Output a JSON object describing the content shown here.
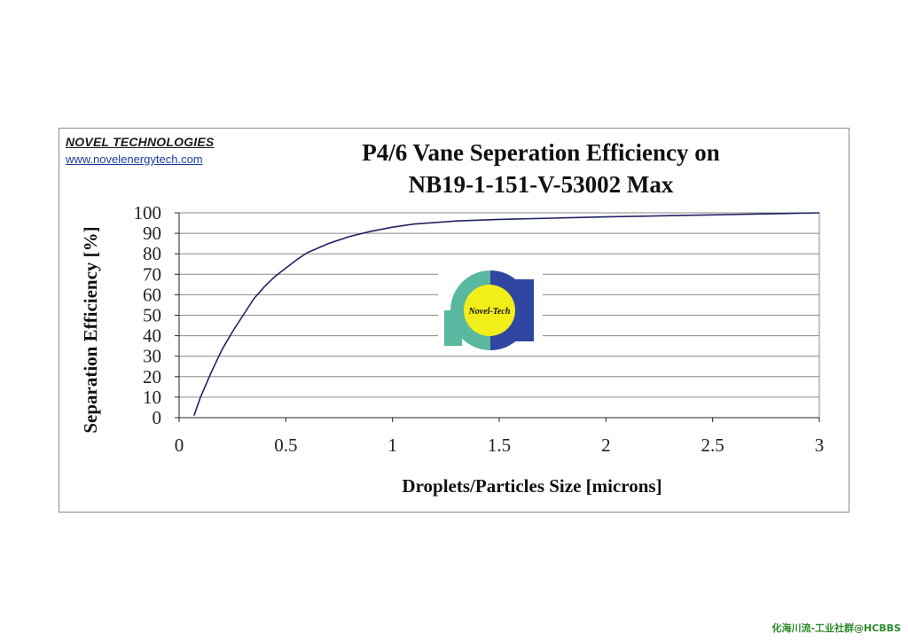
{
  "brand": {
    "name": "NOVEL TECHNOLOGIES",
    "url": "www.novelenergytech.com",
    "logo_text": "Novel-Tech"
  },
  "watermark": "化海川流-工业社群@HCBBS",
  "colors": {
    "line": "#1f2266",
    "grid": "#8a8a8a",
    "logo_teal": "#5ab8a0",
    "logo_blue": "#2f47a0",
    "logo_yellow": "#f2ee1a"
  },
  "chart_data": {
    "type": "line",
    "title_lines": [
      "P4/6 Vane Seperation Efficiency on",
      "NB19-1-151-V-53002 Max"
    ],
    "xlabel": "Droplets/Particles Size [microns]",
    "ylabel": "Separation Efficiency [%]",
    "xlim": [
      0,
      3
    ],
    "ylim": [
      0,
      100
    ],
    "xticks": [
      "0",
      "0.5",
      "1",
      "1.5",
      "2",
      "2.5",
      "3"
    ],
    "xtick_values": [
      0,
      0.5,
      1,
      1.5,
      2,
      2.5,
      3
    ],
    "yticks": [
      "0",
      "10",
      "20",
      "30",
      "40",
      "50",
      "60",
      "70",
      "80",
      "90",
      "100"
    ],
    "ytick_values": [
      0,
      10,
      20,
      30,
      40,
      50,
      60,
      70,
      80,
      90,
      100
    ],
    "grid": "horizontal",
    "series": [
      {
        "x": [
          0.07,
          0.1,
          0.15,
          0.2,
          0.25,
          0.3,
          0.35,
          0.4,
          0.45,
          0.5,
          0.55,
          0.6,
          0.7,
          0.8,
          0.9,
          1.0,
          1.1,
          1.2,
          1.3,
          1.5,
          1.75,
          2.0,
          2.5,
          3.0
        ],
        "y": [
          1,
          10,
          22,
          33,
          42,
          50,
          58,
          64,
          69,
          73,
          77,
          80.5,
          85,
          88.5,
          91,
          93,
          94.5,
          95.3,
          96,
          96.8,
          97.4,
          98,
          99,
          100
        ]
      }
    ]
  }
}
